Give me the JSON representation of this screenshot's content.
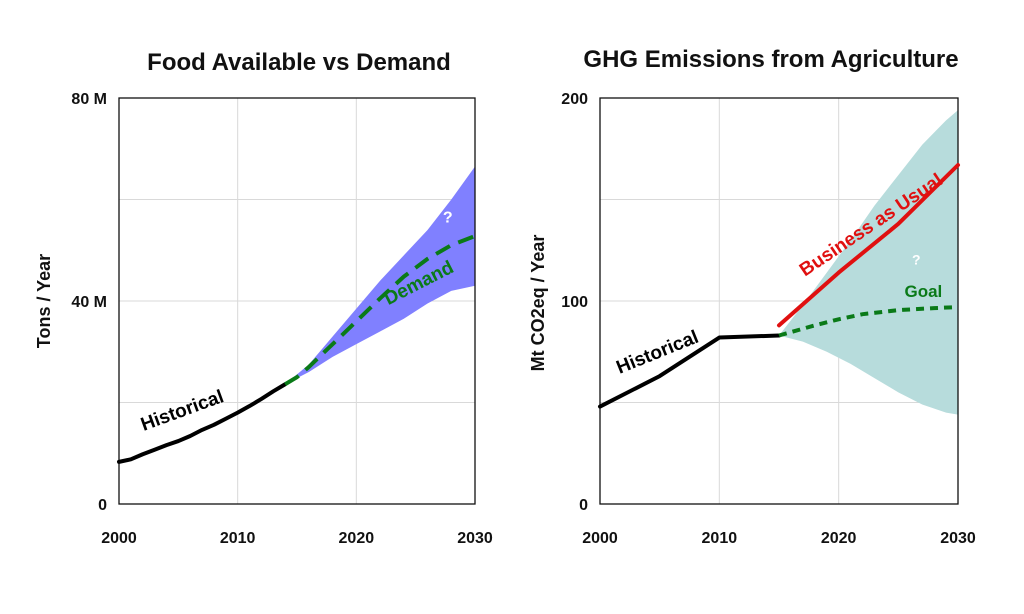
{
  "chart_data": [
    {
      "type": "line",
      "title": "Food Available vs Demand",
      "ylabel": "Tons / Year",
      "xlabel": "",
      "xlim": [
        2000,
        2030
      ],
      "ylim": [
        0,
        80
      ],
      "x_ticks": [
        2000,
        2010,
        2020,
        2030
      ],
      "y_ticks": [
        0,
        40,
        80
      ],
      "y_tick_labels": [
        "0",
        "40 M",
        "80 M"
      ],
      "grid": true,
      "colors": {
        "historical": "#000000",
        "projection": "#0a7a18",
        "band": "#8080ff"
      },
      "series": [
        {
          "name": "Historical",
          "style": "solid",
          "x": [
            2000,
            2001,
            2002,
            2003,
            2004,
            2005,
            2006,
            2007,
            2008,
            2009,
            2010,
            2011,
            2012,
            2013,
            2014
          ],
          "y": [
            8.3,
            8.8,
            9.8,
            10.7,
            11.6,
            12.4,
            13.4,
            14.6,
            15.6,
            16.8,
            18.0,
            19.3,
            20.7,
            22.2,
            23.6
          ]
        },
        {
          "name": "Demand",
          "style": "dashed",
          "x": [
            2014,
            2015,
            2016,
            2018,
            2020,
            2022,
            2024,
            2026,
            2028,
            2030
          ],
          "y": [
            23.6,
            25.0,
            27.0,
            31.5,
            36.0,
            40.5,
            44.8,
            48.3,
            51.0,
            52.8
          ]
        }
      ],
      "band": {
        "x": [
          2014,
          2016,
          2018,
          2020,
          2022,
          2024,
          2026,
          2028,
          2030
        ],
        "upper": [
          23.6,
          27.5,
          33.0,
          38.5,
          44.0,
          49.0,
          54.0,
          60.0,
          66.5
        ],
        "lower": [
          23.6,
          26.0,
          29.0,
          31.5,
          34.0,
          36.5,
          39.5,
          42.0,
          43.0
        ]
      },
      "annotations": [
        {
          "text": "Historical",
          "x": 2005.5,
          "y": 17.3,
          "rotate": -20
        },
        {
          "text": "Demand",
          "x": 2025.5,
          "y": 42.5,
          "rotate": -27
        },
        {
          "text": "?",
          "x": 2027.7,
          "y": 55.5,
          "rotate": 0
        }
      ]
    },
    {
      "type": "line",
      "title": "GHG Emissions from Agriculture",
      "ylabel": "Mt CO2eq / Year",
      "xlabel": "",
      "xlim": [
        2000,
        2030
      ],
      "ylim": [
        0,
        200
      ],
      "x_ticks": [
        2000,
        2010,
        2020,
        2030
      ],
      "y_ticks": [
        0,
        100,
        200
      ],
      "y_tick_labels": [
        "0",
        "100",
        "200"
      ],
      "grid": true,
      "colors": {
        "historical": "#000000",
        "bau": "#e01010",
        "goal": "#0a7a18",
        "band": "#b7dcdc"
      },
      "series": [
        {
          "name": "Historical",
          "style": "solid",
          "x": [
            2000,
            2005,
            2010,
            2015
          ],
          "y": [
            48,
            63,
            82,
            83
          ]
        },
        {
          "name": "Business as Usual",
          "style": "solid",
          "x": [
            2015,
            2020,
            2025,
            2030
          ],
          "y": [
            88,
            114,
            138,
            167
          ]
        },
        {
          "name": "Goal",
          "style": "dashed",
          "x": [
            2015,
            2018,
            2020,
            2022,
            2025,
            2028,
            2030
          ],
          "y": [
            83,
            88,
            91,
            93.5,
            95.5,
            96.5,
            97
          ]
        }
      ],
      "band": {
        "x": [
          2015,
          2017,
          2019,
          2021,
          2023,
          2025,
          2027,
          2029,
          2030
        ],
        "upper": [
          83,
          98,
          114,
          130,
          147,
          162,
          177,
          189,
          194
        ],
        "lower": [
          83,
          80,
          75,
          69,
          62,
          55,
          49,
          45,
          44
        ]
      },
      "annotations": [
        {
          "text": "Historical",
          "x": 2005,
          "y": 72,
          "rotate": -22
        },
        {
          "text": "Business as Usual",
          "x": 2023,
          "y": 135,
          "rotate": -34
        },
        {
          "text": "Goal",
          "x": 2027.1,
          "y": 102,
          "rotate": 0
        },
        {
          "text": "?",
          "x": 2026.5,
          "y": 118,
          "rotate": 0
        }
      ]
    }
  ]
}
